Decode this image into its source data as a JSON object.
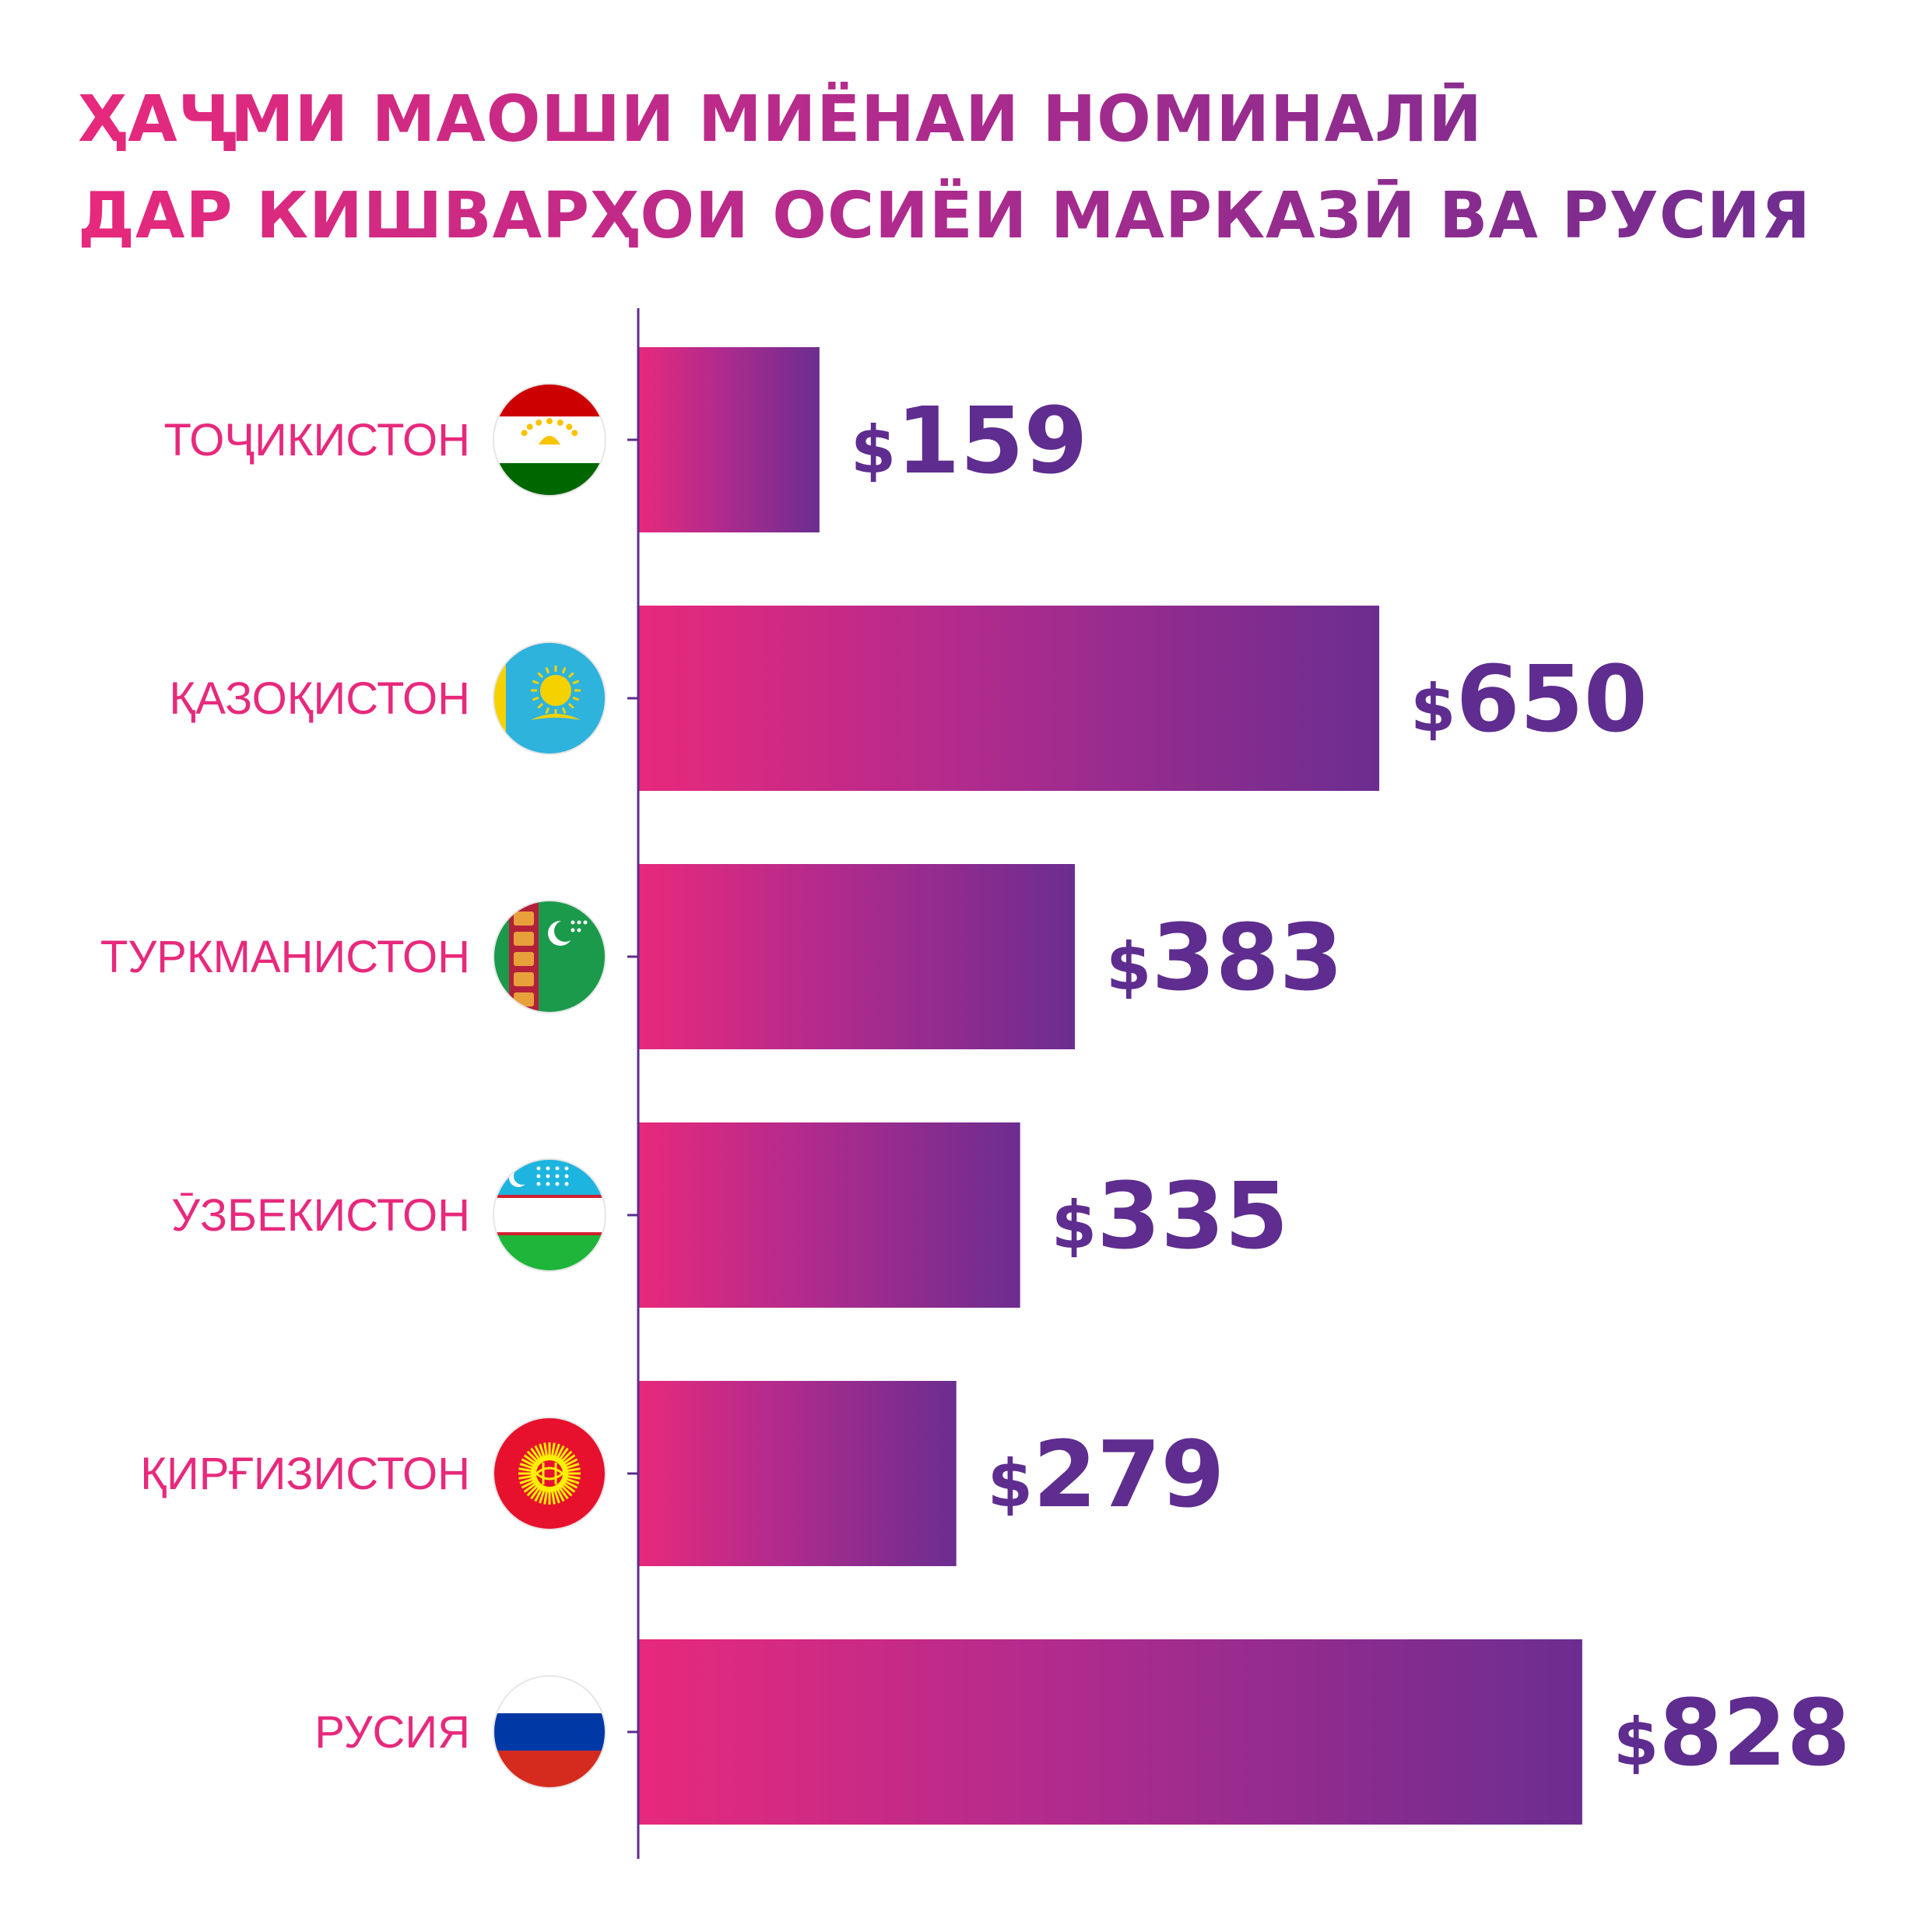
{
  "title": {
    "line1": "ҲАҶМИ МАОШИ МИЁНАИ НОМИНАЛӢ",
    "line2": "ДАР КИШВАРҲОИ ОСИЁИ МАРКАЗӢ ВА РУСИЯ"
  },
  "colors": {
    "accent_pink": "#e7297c",
    "accent_purple": "#6c2d90",
    "axis": "#5b2e8c"
  },
  "chart_data": {
    "type": "bar",
    "orientation": "horizontal",
    "categories": [
      "ТОҶИКИСТОН",
      "ҚАЗОҚИСТОН",
      "ТУРКМАНИСТОН",
      "ӮЗБЕКИСТОН",
      "ҚИРҒИЗИСТОН",
      "РУСИЯ"
    ],
    "values": [
      159,
      650,
      383,
      335,
      279,
      828
    ],
    "value_labels": [
      "$159",
      "$650",
      "$383",
      "$335",
      "$279",
      "$828"
    ],
    "flags": [
      "tajikistan-flag-icon",
      "kazakhstan-flag-icon",
      "turkmenistan-flag-icon",
      "uzbekistan-flag-icon",
      "kyrgyzstan-flag-icon",
      "russia-flag-icon"
    ],
    "unit": "$",
    "xlim": [
      0,
      1000
    ],
    "grid": false,
    "legend": "none"
  }
}
